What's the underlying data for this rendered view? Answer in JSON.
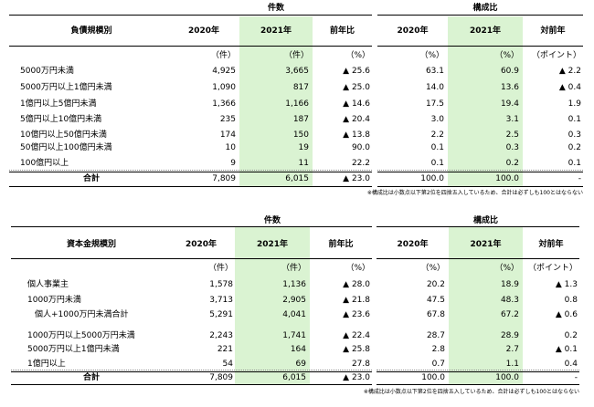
{
  "table1": {
    "group_counts": "件数",
    "group_ratio": "構成比",
    "category_header": "負債規模別",
    "col_2020": "2020年",
    "col_2021": "2021年",
    "col_yoy": "前年比",
    "col_ratio_2020": "2020年",
    "col_ratio_2021": "2021年",
    "col_diff": "対前年",
    "unit_2020": "（件）",
    "unit_2021": "（件）",
    "unit_yoy": "（%）",
    "unit_r2020": "（%）",
    "unit_r2021": "（%）",
    "unit_diff": "（ポイント）",
    "rows": [
      {
        "label": "5000万円未満",
        "c2020": "4,925",
        "c2021": "3,665",
        "yoy": "▲ 25.6",
        "r2020": "63.1",
        "r2021": "60.9",
        "diff": "▲ 2.2"
      },
      {
        "label": "5000万円以上1億円未満",
        "c2020": "1,090",
        "c2021": "817",
        "yoy": "▲ 25.0",
        "r2020": "14.0",
        "r2021": "13.6",
        "diff": "▲ 0.4"
      },
      {
        "label": "1億円以上5億円未満",
        "c2020": "1,366",
        "c2021": "1,166",
        "yoy": "▲ 14.6",
        "r2020": "17.5",
        "r2021": "19.4",
        "diff": "1.9"
      },
      {
        "label": "5億円以上10億円未満",
        "c2020": "235",
        "c2021": "187",
        "yoy": "▲ 20.4",
        "r2020": "3.0",
        "r2021": "3.1",
        "diff": "0.1"
      },
      {
        "label": "10億円以上50億円未満",
        "c2020": "174",
        "c2021": "150",
        "yoy": "▲ 13.8",
        "r2020": "2.2",
        "r2021": "2.5",
        "diff": "0.3"
      },
      {
        "label": "50億円以上100億円未満",
        "c2020": "10",
        "c2021": "19",
        "yoy": "90.0",
        "r2020": "0.1",
        "r2021": "0.3",
        "diff": "0.2"
      },
      {
        "label": "100億円以上",
        "c2020": "9",
        "c2021": "11",
        "yoy": "22.2",
        "r2020": "0.1",
        "r2021": "0.2",
        "diff": "0.1"
      }
    ],
    "total": {
      "label": "合計",
      "c2020": "7,809",
      "c2021": "6,015",
      "yoy": "▲ 23.0",
      "r2020": "100.0",
      "r2021": "100.0",
      "diff": "-"
    },
    "note": "※構成比は小数点以下第2位を四捨五入しているため、合計は必ずしも100とはならない"
  },
  "table2": {
    "group_counts": "件数",
    "group_ratio": "構成比",
    "category_header": "資本金規模別",
    "col_2020": "2020年",
    "col_2021": "2021年",
    "col_yoy": "前年比",
    "col_ratio_2020": "2020年",
    "col_ratio_2021": "2021年",
    "col_diff": "対前年",
    "unit_2020": "（件）",
    "unit_2021": "（件）",
    "unit_yoy": "（%）",
    "unit_r2020": "（%）",
    "unit_r2021": "（%）",
    "unit_diff": "（ポイント）",
    "rows": [
      {
        "label": "個人事業主",
        "c2020": "1,578",
        "c2021": "1,136",
        "yoy": "▲ 28.0",
        "r2020": "20.2",
        "r2021": "18.9",
        "diff": "▲ 1.3"
      },
      {
        "label": "1000万円未満",
        "c2020": "3,713",
        "c2021": "2,905",
        "yoy": "▲ 21.8",
        "r2020": "47.5",
        "r2021": "48.3",
        "diff": "0.8"
      },
      {
        "label": "個人+1000万円未満合計",
        "c2020": "5,291",
        "c2021": "4,041",
        "yoy": "▲ 23.6",
        "r2020": "67.8",
        "r2021": "67.2",
        "diff": "▲ 0.6"
      },
      {
        "label": "1000万円以上5000万円未満",
        "c2020": "2,243",
        "c2021": "1,741",
        "yoy": "▲ 22.4",
        "r2020": "28.7",
        "r2021": "28.9",
        "diff": "0.2"
      },
      {
        "label": "5000万円以上1億円未満",
        "c2020": "221",
        "c2021": "164",
        "yoy": "▲ 25.8",
        "r2020": "2.8",
        "r2021": "2.7",
        "diff": "▲ 0.1"
      },
      {
        "label": "1億円以上",
        "c2020": "54",
        "c2021": "69",
        "yoy": "27.8",
        "r2020": "0.7",
        "r2021": "1.1",
        "diff": "0.4"
      }
    ],
    "total": {
      "label": "合計",
      "c2020": "7,809",
      "c2021": "6,015",
      "yoy": "▲ 23.0",
      "r2020": "100.0",
      "r2021": "100.0",
      "diff": "-"
    },
    "note": "※構成比は小数点以下第2位を四捨五入しているため、合計は必ずしも100とはならない"
  }
}
